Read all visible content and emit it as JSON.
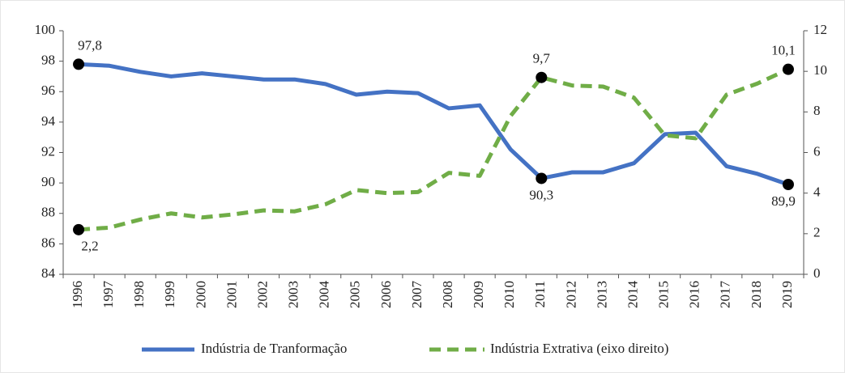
{
  "chart_data": {
    "type": "line",
    "categories": [
      "1996",
      "1997",
      "1998",
      "1999",
      "2000",
      "2001",
      "2002",
      "2003",
      "2004",
      "2005",
      "2006",
      "2007",
      "2008",
      "2009",
      "2010",
      "2011",
      "2012",
      "2013",
      "2014",
      "2015",
      "2016",
      "2017",
      "2018",
      "2019"
    ],
    "series": [
      {
        "name": "Indústria de Tranformação",
        "color": "#4472c4",
        "axis": "y",
        "dash": false,
        "values": [
          97.8,
          97.7,
          97.3,
          97.0,
          97.2,
          97.0,
          96.8,
          96.8,
          96.5,
          95.8,
          96.0,
          95.9,
          94.9,
          95.1,
          92.2,
          90.3,
          90.7,
          90.7,
          91.3,
          93.2,
          93.3,
          91.1,
          90.6,
          89.9
        ],
        "value_labels": [
          "97,8",
          null,
          null,
          null,
          null,
          null,
          null,
          null,
          null,
          null,
          null,
          null,
          null,
          null,
          null,
          "90,3",
          null,
          null,
          null,
          null,
          null,
          null,
          null,
          "89,9"
        ]
      },
      {
        "name": "Indústria Extrativa (eixo direito)",
        "color": "#70ad47",
        "axis": "y2",
        "dash": true,
        "values": [
          2.2,
          2.3,
          2.7,
          3.0,
          2.8,
          2.95,
          3.15,
          3.1,
          3.45,
          4.15,
          4.0,
          4.05,
          5.0,
          4.85,
          7.8,
          9.7,
          9.3,
          9.25,
          8.7,
          6.85,
          6.7,
          8.85,
          9.4,
          10.1
        ],
        "value_labels": [
          "2,2",
          null,
          null,
          null,
          null,
          null,
          null,
          null,
          null,
          null,
          null,
          null,
          null,
          null,
          null,
          "9,7",
          null,
          null,
          null,
          null,
          null,
          null,
          null,
          "10,1"
        ]
      }
    ],
    "ylim": [
      84,
      100
    ],
    "yticks": [
      84,
      86,
      88,
      90,
      92,
      94,
      96,
      98,
      100
    ],
    "y2lim": [
      0,
      12
    ],
    "y2ticks": [
      0,
      2,
      4,
      6,
      8,
      10,
      12
    ],
    "grid": false,
    "legend": "bottom"
  }
}
